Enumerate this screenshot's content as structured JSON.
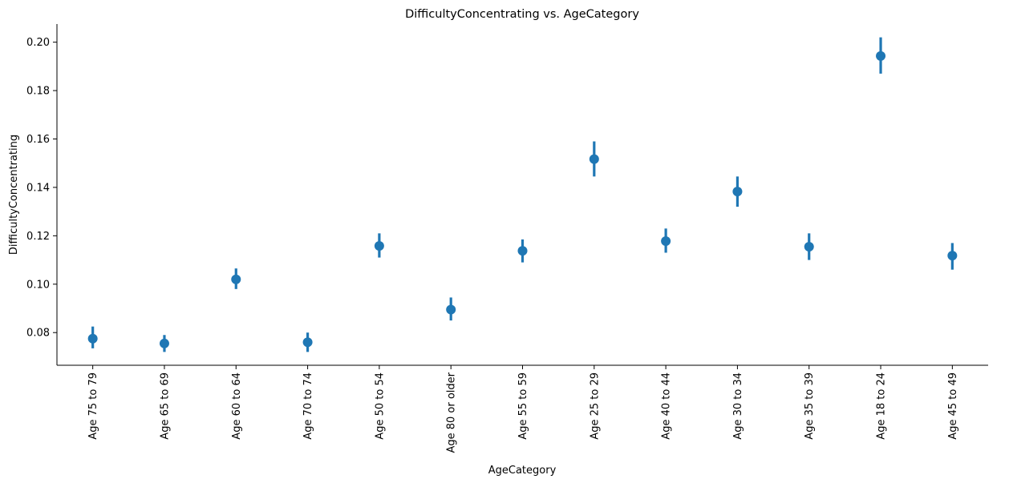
{
  "chart_data": {
    "type": "scatter",
    "title": "DifficultyConcentrating vs. AgeCategory",
    "xlabel": "AgeCategory",
    "ylabel": "DifficultyConcentrating",
    "ylim": [
      0.0665,
      0.2075
    ],
    "yticks": [
      "0.08",
      "0.10",
      "0.12",
      "0.14",
      "0.16",
      "0.18",
      "0.20"
    ],
    "grid": false,
    "color": "#1f77b4",
    "categories": [
      "Age 75 to 79",
      "Age 65 to 69",
      "Age 60 to 64",
      "Age 70 to 74",
      "Age 50 to 54",
      "Age 80 or older",
      "Age 55 to 59",
      "Age 25 to 29",
      "Age 40 to 44",
      "Age 30 to 34",
      "Age 35 to 39",
      "Age 18 to 24",
      "Age 45 to 49"
    ],
    "values": [
      0.0775,
      0.0755,
      0.102,
      0.076,
      0.1158,
      0.0895,
      0.1138,
      0.1517,
      0.1178,
      0.1383,
      0.1155,
      0.1943,
      0.1118
    ],
    "err_low": [
      0.0735,
      0.072,
      0.098,
      0.072,
      0.111,
      0.085,
      0.109,
      0.1445,
      0.113,
      0.132,
      0.11,
      0.187,
      0.106
    ],
    "err_high": [
      0.0825,
      0.079,
      0.1065,
      0.08,
      0.121,
      0.0945,
      0.1185,
      0.159,
      0.123,
      0.1445,
      0.121,
      0.202,
      0.117
    ]
  }
}
